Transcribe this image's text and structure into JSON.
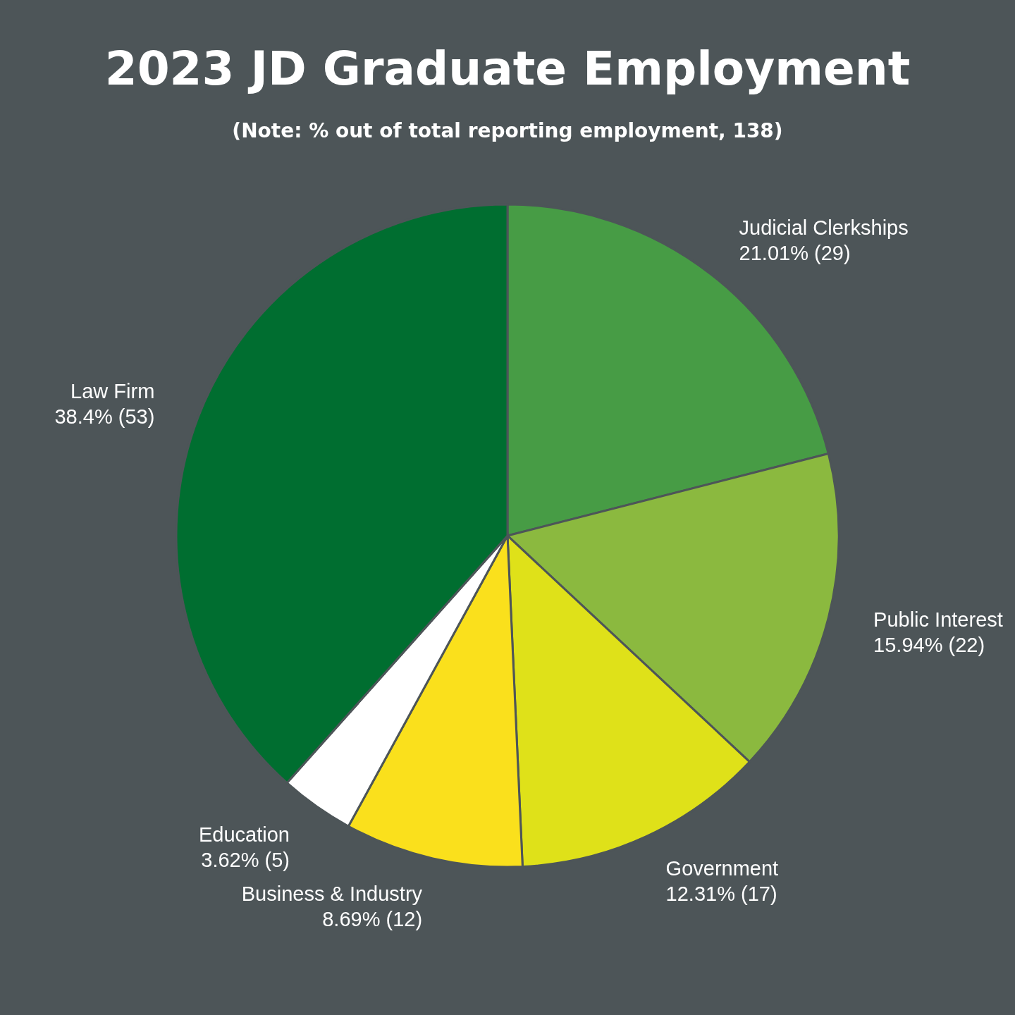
{
  "chart_data": {
    "type": "pie",
    "title": "2023 JD Graduate Employment",
    "subtitle": "(Note: % out of total reporting employment, 138)",
    "categories": [
      "Judicial Clerkships",
      "Public Interest",
      "Government",
      "Business & Industry",
      "Education",
      "Law Firm"
    ],
    "values": [
      29,
      22,
      17,
      12,
      5,
      53
    ],
    "value_labels": [
      "21.01% (29)",
      "15.94% (22)",
      "12.31% (17)",
      "8.69% (12)",
      "3.62% (5)",
      "38.4% (53)"
    ],
    "colors": [
      "#479c45",
      "#8bb93f",
      "#dfe119",
      "#fae01c",
      "#ffffff",
      "#006e30"
    ]
  }
}
